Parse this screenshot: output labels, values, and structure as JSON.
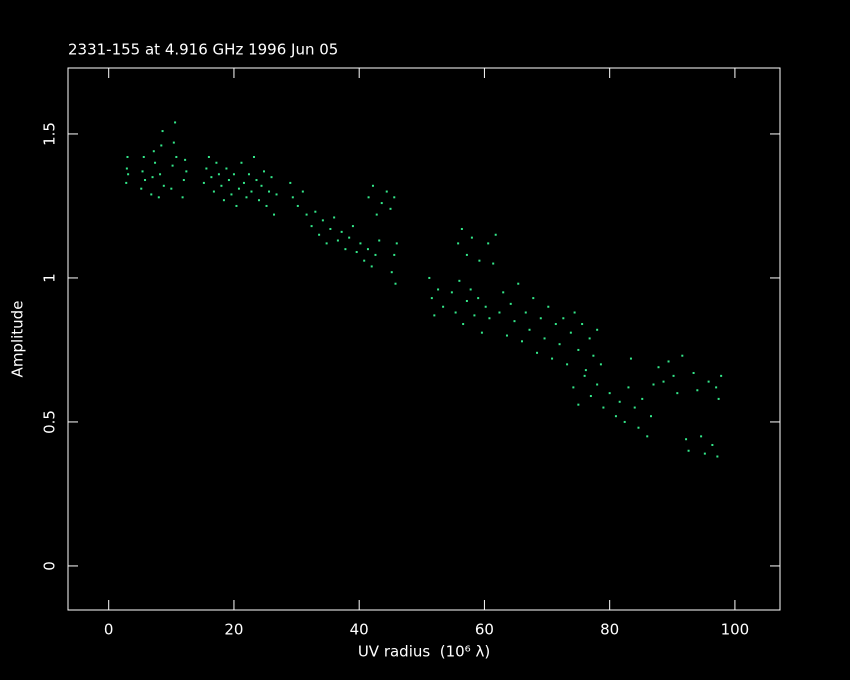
{
  "chart_data": {
    "type": "scatter",
    "title": "2331-155 at 4.916 GHz 1996 Jun 05",
    "x_label": "UV radius  (10⁶ λ)",
    "y_label": "Amplitude",
    "color": "#33e88a",
    "xlim": [
      -6.5,
      107.2
    ],
    "ylim": [
      -0.153,
      1.729
    ],
    "xticks": [
      0,
      20,
      40,
      60,
      80,
      100
    ],
    "yticks": [
      0,
      0.5,
      1,
      1.5
    ],
    "x": [
      2.8,
      2.9,
      3.0,
      3.1,
      5.2,
      5.4,
      5.6,
      5.8,
      6.8,
      7.0,
      7.2,
      7.4,
      8.0,
      8.2,
      8.4,
      8.6,
      8.8,
      10.0,
      10.2,
      10.4,
      10.6,
      10.8,
      11.8,
      12.0,
      12.2,
      12.4,
      15.2,
      15.6,
      16.0,
      16.4,
      16.8,
      17.2,
      17.6,
      18.0,
      18.4,
      18.8,
      19.2,
      19.6,
      20.0,
      20.4,
      20.8,
      21.2,
      21.6,
      22.0,
      22.4,
      22.8,
      23.2,
      23.6,
      24.0,
      24.4,
      24.8,
      25.2,
      25.6,
      26.0,
      26.4,
      26.8,
      29.0,
      29.4,
      30.2,
      31.0,
      31.6,
      32.4,
      33.0,
      33.6,
      34.2,
      34.8,
      35.4,
      36.0,
      36.6,
      37.2,
      37.8,
      38.4,
      39.0,
      39.6,
      40.2,
      40.8,
      41.4,
      42.0,
      42.6,
      43.2,
      41.5,
      42.2,
      42.8,
      43.6,
      44.4,
      45.0,
      45.6,
      45.2,
      45.6,
      46.0,
      45.8,
      51.2,
      51.6,
      52.0,
      52.6,
      53.4,
      54.8,
      55.4,
      56.0,
      56.6,
      57.2,
      57.8,
      58.4,
      59.0,
      59.6,
      60.2,
      60.8,
      55.8,
      56.4,
      57.2,
      58.0,
      59.2,
      60.6,
      61.4,
      61.8,
      62.4,
      63.0,
      63.6,
      64.2,
      64.8,
      65.4,
      66.0,
      66.6,
      67.2,
      67.8,
      68.4,
      69.0,
      69.6,
      70.2,
      70.8,
      71.4,
      72.0,
      72.6,
      73.2,
      73.8,
      74.4,
      75.0,
      75.6,
      76.2,
      76.8,
      77.4,
      78.0,
      78.6,
      74.2,
      75.0,
      76.0,
      77.0,
      78.0,
      79.0,
      80.0,
      81.0,
      81.6,
      82.4,
      83.0,
      83.4,
      84.0,
      84.6,
      85.2,
      86.0,
      86.6,
      87.0,
      87.8,
      88.6,
      89.4,
      90.2,
      90.8,
      91.6,
      92.2,
      92.6,
      93.4,
      94.0,
      94.6,
      95.2,
      95.8,
      96.4,
      97.0,
      97.4,
      97.8,
      97.2
    ],
    "values": [
      1.33,
      1.38,
      1.42,
      1.36,
      1.31,
      1.37,
      1.42,
      1.34,
      1.29,
      1.35,
      1.44,
      1.4,
      1.28,
      1.36,
      1.46,
      1.51,
      1.32,
      1.31,
      1.39,
      1.47,
      1.54,
      1.42,
      1.28,
      1.34,
      1.41,
      1.37,
      1.33,
      1.38,
      1.42,
      1.35,
      1.3,
      1.4,
      1.36,
      1.32,
      1.27,
      1.38,
      1.34,
      1.29,
      1.36,
      1.25,
      1.31,
      1.4,
      1.33,
      1.28,
      1.36,
      1.3,
      1.42,
      1.34,
      1.27,
      1.32,
      1.37,
      1.25,
      1.3,
      1.35,
      1.22,
      1.29,
      1.33,
      1.28,
      1.25,
      1.3,
      1.22,
      1.18,
      1.23,
      1.15,
      1.2,
      1.12,
      1.17,
      1.21,
      1.13,
      1.16,
      1.1,
      1.14,
      1.18,
      1.09,
      1.12,
      1.06,
      1.1,
      1.04,
      1.08,
      1.13,
      1.28,
      1.32,
      1.22,
      1.26,
      1.3,
      1.24,
      1.28,
      1.02,
      1.08,
      1.12,
      0.98,
      1.0,
      0.93,
      0.87,
      0.96,
      0.9,
      0.95,
      0.88,
      0.99,
      0.84,
      0.92,
      0.96,
      0.87,
      0.93,
      0.81,
      0.9,
      0.86,
      1.12,
      1.17,
      1.08,
      1.14,
      1.06,
      1.12,
      1.05,
      1.15,
      0.88,
      0.95,
      0.8,
      0.91,
      0.85,
      0.98,
      0.78,
      0.88,
      0.82,
      0.93,
      0.74,
      0.86,
      0.79,
      0.9,
      0.72,
      0.84,
      0.77,
      0.86,
      0.7,
      0.81,
      0.88,
      0.75,
      0.84,
      0.68,
      0.79,
      0.73,
      0.82,
      0.7,
      0.62,
      0.56,
      0.66,
      0.59,
      0.63,
      0.55,
      0.6,
      0.52,
      0.57,
      0.5,
      0.62,
      0.72,
      0.55,
      0.48,
      0.58,
      0.45,
      0.52,
      0.63,
      0.69,
      0.64,
      0.71,
      0.66,
      0.6,
      0.73,
      0.44,
      0.4,
      0.67,
      0.61,
      0.45,
      0.39,
      0.64,
      0.42,
      0.62,
      0.58,
      0.66,
      0.38
    ]
  }
}
